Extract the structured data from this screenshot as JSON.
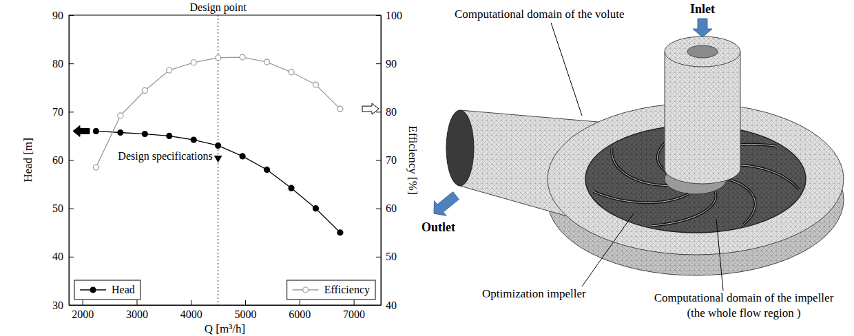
{
  "chart_data": {
    "type": "line",
    "x_label": "Q [m³/h]",
    "y_label": "Head [m]",
    "y2_label": "Efficiency [%]",
    "x": [
      2250,
      2700,
      3150,
      3600,
      4050,
      4500,
      4950,
      5400,
      5850,
      6300,
      6750
    ],
    "xlim": [
      1750,
      7500
    ],
    "xticks": [
      2000,
      3000,
      4000,
      5000,
      6000,
      7000
    ],
    "ylim": [
      30,
      90
    ],
    "yticks": [
      30,
      40,
      50,
      60,
      70,
      80,
      90
    ],
    "y2lim": [
      40,
      100
    ],
    "y2ticks": [
      40,
      50,
      60,
      70,
      80,
      90,
      100
    ],
    "grid": false,
    "series": [
      {
        "name": "Head",
        "color": "#000000",
        "marker": "circle",
        "line_style": "solid",
        "legend": "lower left",
        "values": [
          66,
          65.7,
          65.4,
          65,
          64.2,
          63,
          60.8,
          58,
          54.2,
          50,
          45
        ]
      },
      {
        "name": "Efficiency",
        "color": "#999999",
        "marker": "open circle",
        "line_style": "solid",
        "legend": "lower right",
        "axis": "y2",
        "values": [
          68.5,
          79.2,
          84.4,
          88.6,
          90.2,
          91.2,
          91.3,
          90.3,
          88.2,
          85.6,
          80.6
        ]
      }
    ],
    "annotations": [
      {
        "text": "Design point",
        "x": 4500,
        "line_style": "dotted"
      },
      {
        "text": "Design specifications",
        "x": 4500,
        "y": 60,
        "marker": "triangle"
      }
    ]
  },
  "diagram": {
    "labels": {
      "volute": "Computational domain of the volute",
      "inlet": "Inlet",
      "outlet": "Outlet",
      "impeller": "Optimization impeller",
      "impeller_domain": [
        "Computational domain of the impeller",
        "(the whole flow region )"
      ]
    }
  }
}
